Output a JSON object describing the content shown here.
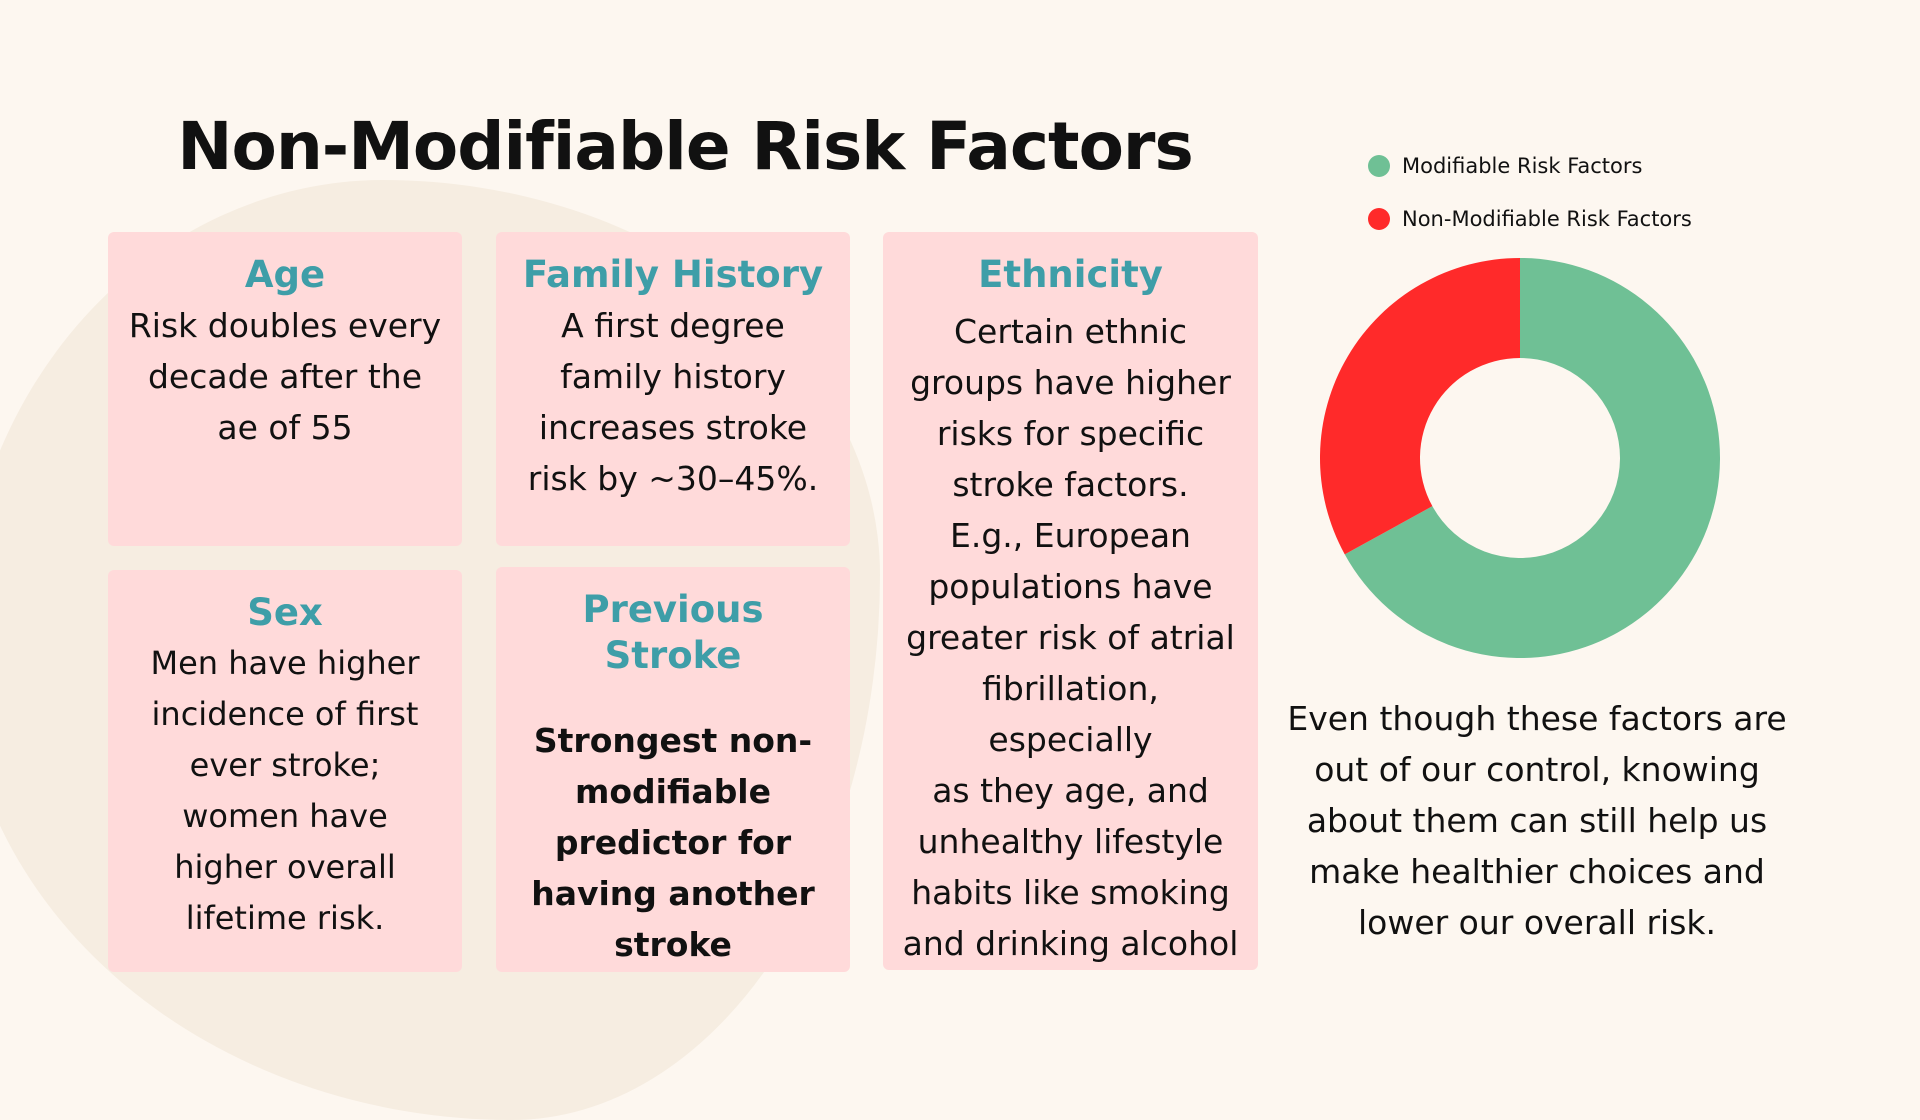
{
  "title": "Non-Modifiable Risk Factors",
  "colors": {
    "background": "#FDF7F0",
    "card": "#FFDADA",
    "heading": "#3E9EA8",
    "modifiable": "#6FC095",
    "non_modifiable": "#FF2A2A"
  },
  "cards": {
    "age": {
      "heading": "Age",
      "body": [
        "Risk doubles every",
        "decade after the",
        "ae of 55"
      ]
    },
    "family_history": {
      "heading": "Family History",
      "body": [
        "A first degree",
        "family history",
        "increases stroke",
        "risk by ~30–45%."
      ]
    },
    "ethnicity": {
      "heading": "Ethnicity",
      "body": [
        "Certain ethnic",
        "groups have higher",
        "risks for specific",
        "stroke factors.",
        "E.g., European",
        "populations have",
        "greater risk of atrial",
        "fibrillation, especially",
        "as they age, and",
        "unhealthy lifestyle",
        "habits like smoking",
        "and drinking alcohol"
      ]
    },
    "sex": {
      "heading": "Sex",
      "body": [
        "Men have higher",
        "incidence of first",
        "ever stroke;",
        "women have",
        "higher overall",
        "lifetime risk."
      ]
    },
    "previous_stroke": {
      "heading": "Previous Stroke",
      "body": [
        "Strongest non-",
        "modifiable",
        "predictor for",
        "having another",
        "stroke"
      ]
    }
  },
  "chart_data": {
    "type": "pie",
    "variant": "donut",
    "title": "",
    "categories": [
      "Modifiable Risk Factors",
      "Non-Modifiable Risk Factors"
    ],
    "values": [
      67,
      33
    ],
    "legend_position": "top-right",
    "colors": [
      "#6FC095",
      "#FF2A2A"
    ]
  },
  "caption": [
    "Even though these factors are",
    "out of our control, knowing",
    "about them can still help us",
    "make healthier choices and",
    "lower our overall risk."
  ]
}
